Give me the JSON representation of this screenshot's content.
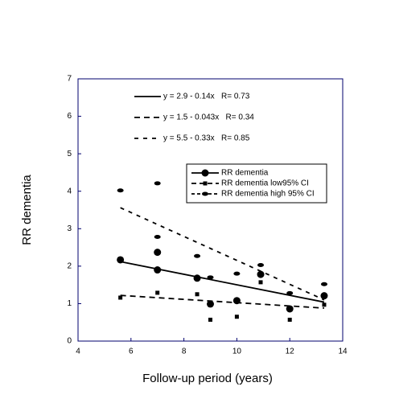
{
  "chart_data": {
    "type": "scatter",
    "xlabel": "Follow-up period (years)",
    "ylabel": "RR dementia",
    "xlim": [
      4,
      14
    ],
    "xticks": [
      4,
      6,
      8,
      10,
      12,
      14
    ],
    "ylim": [
      0,
      7
    ],
    "yticks": [
      0,
      1,
      2,
      3,
      4,
      5,
      6,
      7
    ],
    "legend": "upper right",
    "series": [
      {
        "name": "RR dementia",
        "color": "#000000",
        "marker": "circle",
        "x": [
          5.6,
          7,
          7,
          8.5,
          9,
          10,
          10.9,
          12,
          13.3
        ],
        "values": [
          2.17,
          2.37,
          1.9,
          1.68,
          0.99,
          1.08,
          1.78,
          0.86,
          1.21
        ]
      },
      {
        "name": "RR dementia low95% CI",
        "color": "#000000",
        "marker": "square",
        "x": [
          5.6,
          7,
          8.5,
          9,
          10,
          10.9,
          12,
          13.3
        ],
        "values": [
          1.16,
          1.29,
          1.25,
          0.57,
          0.65,
          1.57,
          0.57,
          0.97
        ]
      },
      {
        "name": "RR dementia high 95% CI",
        "color": "#000000",
        "marker": "diamond",
        "x": [
          5.6,
          7,
          7,
          8.5,
          9,
          10,
          10.9,
          12,
          13.3
        ],
        "values": [
          4.02,
          4.21,
          2.78,
          2.27,
          1.7,
          1.8,
          2.03,
          1.28,
          1.52
        ]
      }
    ],
    "fits": [
      {
        "label": "y = 2.9 - 0.14x   R= 0.73",
        "dash": "solid",
        "x": [
          5.6,
          13.3
        ],
        "values": [
          2.12,
          1.04
        ]
      },
      {
        "label": "y = 1.5 - 0.043x   R= 0.34",
        "dash": "long",
        "x": [
          5.6,
          13.3
        ],
        "values": [
          1.22,
          0.88
        ]
      },
      {
        "label": "y = 5.5 - 0.33x   R= 0.85",
        "dash": "medium",
        "x": [
          5.6,
          13.3
        ],
        "values": [
          3.56,
          1.1
        ]
      }
    ]
  }
}
